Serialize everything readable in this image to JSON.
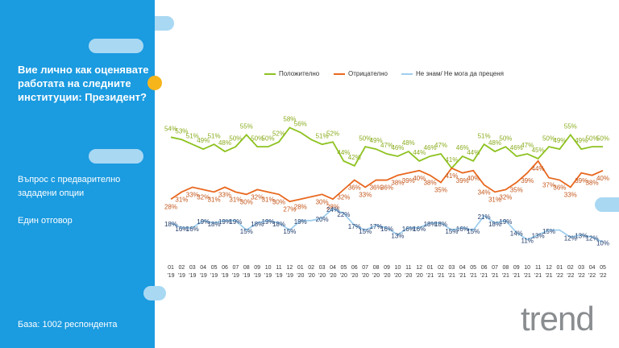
{
  "title": "Вие лично как оценявате работата на следните институции: Президент?",
  "question_type": "Въпрос с предварително зададени опции",
  "answer_type": "Един отговор",
  "base": "База:  1002 респондента",
  "logo": "trend",
  "chart_data": {
    "type": "line",
    "categories": [
      "01\n'19",
      "02\n'19",
      "03\n'19",
      "04\n'19",
      "05\n'19",
      "06\n'19",
      "07\n'19",
      "08\n'19",
      "09\n'19",
      "10\n'19",
      "11\n'19",
      "12\n'19",
      "01\n'20",
      "02\n'20",
      "03\n'20",
      "04\n'20",
      "05\n'20",
      "06\n'20",
      "07\n'20",
      "08\n'20",
      "09\n'20",
      "10\n'20",
      "11\n'20",
      "12\n'20",
      "01\n'21",
      "02\n'21",
      "03\n'21",
      "04\n'21",
      "05\n'21",
      "06\n'21",
      "07\n'21",
      "08\n'21",
      "09\n'21",
      "10\n'21",
      "11\n'21",
      "12\n'21",
      "01\n'22",
      "02\n'22",
      "03\n'22",
      "04\n'22",
      "05\n'22"
    ],
    "ylim": [
      0,
      70
    ],
    "series": [
      {
        "name": "Положително",
        "color": "#8dc21f",
        "label_color": "#8aac1e",
        "values": [
          54,
          53,
          51,
          49,
          51,
          48,
          50,
          55,
          50,
          50,
          52,
          58,
          56,
          53,
          51,
          52,
          44,
          42,
          50,
          49,
          47,
          46,
          48,
          44,
          46,
          47,
          41,
          46,
          44,
          51,
          48,
          50,
          46,
          47,
          45,
          50,
          49,
          55,
          49,
          50,
          50
        ],
        "value_labels": [
          "54%",
          "53%",
          "51%",
          "49%",
          "51%",
          "48%",
          "50%",
          "55%",
          "50%",
          "50%",
          "52%",
          "58%",
          "56%",
          null,
          "51%",
          "52%",
          "44%",
          "42%",
          "50%",
          "49%",
          "47%",
          "46%",
          "48%",
          "44%",
          "46%",
          "47%",
          "41%",
          "46%",
          "44%",
          "51%",
          "48%",
          "50%",
          "46%",
          "47%",
          "45%",
          "50%",
          "49%",
          "55%",
          "49%",
          "50%",
          "50%"
        ]
      },
      {
        "name": "Отрицателно",
        "color": "#e8681f",
        "label_color": "#c4561a",
        "values": [
          28,
          31,
          33,
          32,
          31,
          33,
          31,
          30,
          32,
          31,
          30,
          27,
          28,
          29,
          30,
          28,
          32,
          36,
          33,
          36,
          36,
          38,
          39,
          40,
          38,
          35,
          41,
          39,
          40,
          34,
          31,
          32,
          35,
          39,
          44,
          37,
          36,
          33,
          39,
          38,
          40
        ],
        "value_labels": [
          "28%",
          "31%",
          "33%",
          "32%",
          "31%",
          "33%",
          "31%",
          "30%",
          "32%",
          "31%",
          "30%",
          "27%",
          "28%",
          null,
          "30%",
          "28%",
          "32%",
          "36%",
          "33%",
          "36%",
          "36%",
          "38%",
          "39%",
          "40%",
          "38%",
          "35%",
          "41%",
          "39%",
          "40%",
          "34%",
          "31%",
          "32%",
          "35%",
          "39%",
          "44%",
          "37%",
          "36%",
          "33%",
          "39%",
          "38%",
          "40%"
        ]
      },
      {
        "name": "Не знам/ Не мога да преценя",
        "color": "#9fcfee",
        "label_color": "#1f3a6b",
        "values": [
          18,
          16,
          16,
          19,
          18,
          19,
          19,
          15,
          18,
          19,
          18,
          15,
          19,
          19,
          20,
          24,
          22,
          17,
          15,
          17,
          16,
          13,
          16,
          16,
          18,
          18,
          15,
          16,
          15,
          21,
          18,
          19,
          14,
          11,
          13,
          15,
          15,
          12,
          13,
          12,
          10
        ],
        "value_labels": [
          "18%",
          "16%",
          "16%",
          "19%",
          "18%",
          "19%",
          "19%",
          "15%",
          "18%",
          "19%",
          "18%",
          "15%",
          "19%",
          null,
          "20%",
          "24%",
          "22%",
          "17%",
          "15%",
          "17%",
          "16%",
          "13%",
          "16%",
          "16%",
          "18%",
          "18%",
          "15%",
          "16%",
          "15%",
          "21%",
          "18%",
          "19%",
          "14%",
          "11%",
          "13%",
          "15%",
          null,
          "12%",
          "13%",
          "12%",
          "10%"
        ]
      }
    ]
  }
}
